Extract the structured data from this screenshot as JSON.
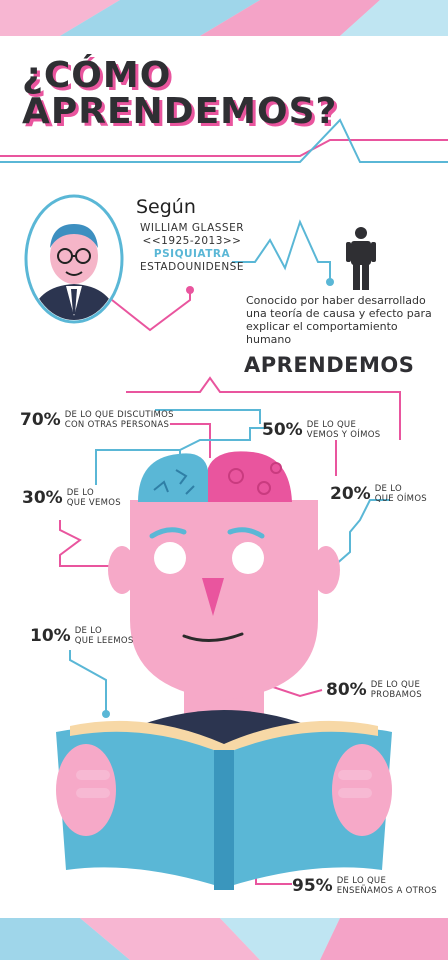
{
  "header": {
    "line1": "¿CÓMO",
    "line2": "APRENDEMOS?"
  },
  "author": {
    "intro": "Según",
    "name": "WILLIAM GLASSER",
    "years": "<<1925-2013>>",
    "profession": "PSIQUIATRA",
    "nationality": "ESTADOUNIDENSE",
    "description": [
      "Conocido por haber desarrollado",
      "una teoría de causa y efecto para",
      "explicar el comportamiento humano"
    ]
  },
  "section_title": "APRENDEMOS",
  "facts": [
    {
      "pct": "70%",
      "l1": "DE LO QUE DISCUTIMOS",
      "l2": "CON OTRAS PERSONAS"
    },
    {
      "pct": "50%",
      "l1": "DE LO QUE",
      "l2": "VEMOS Y OÍMOS"
    },
    {
      "pct": "30%",
      "l1": "DE LO",
      "l2": "QUE VEMOS"
    },
    {
      "pct": "20%",
      "l1": "DE LO",
      "l2": "QUE OÍMOS"
    },
    {
      "pct": "10%",
      "l1": "DE LO",
      "l2": "QUE LEEMOS"
    },
    {
      "pct": "80%",
      "l1": "DE LO QUE",
      "l2": "PROBAMOS"
    },
    {
      "pct": "95%",
      "l1": "DE LO QUE",
      "l2": "ENSEÑAMOS A OTROS"
    }
  ],
  "colors": {
    "pink": "#e9559e",
    "blue": "#5ab7d6",
    "skin": "#f6a9c8",
    "dark": "#2f2f33"
  }
}
